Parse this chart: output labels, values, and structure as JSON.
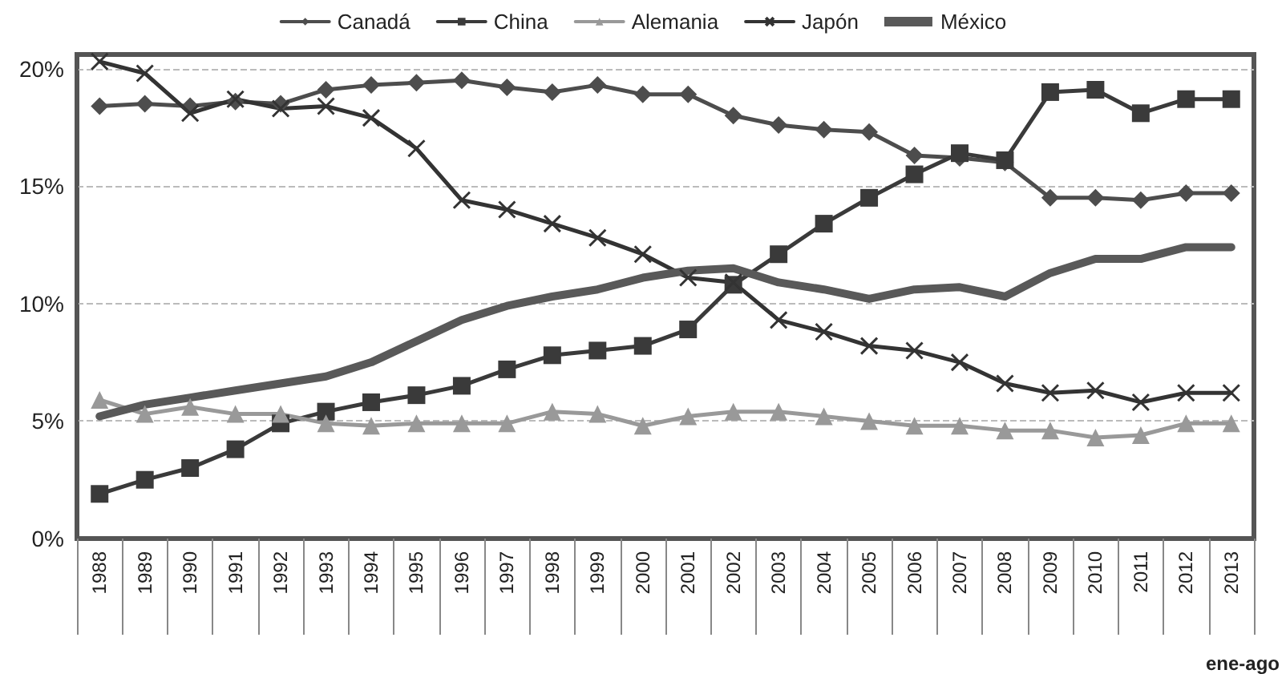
{
  "chart_data": {
    "type": "line",
    "categories": [
      "1988",
      "1989",
      "1990",
      "1991",
      "1992",
      "1993",
      "1994",
      "1995",
      "1996",
      "1997",
      "1998",
      "1999",
      "2000",
      "2001",
      "2002",
      "2003",
      "2004",
      "2005",
      "2006",
      "2007",
      "2008",
      "2009",
      "2010",
      "2011",
      "2012",
      "2013"
    ],
    "series": [
      {
        "name": "Canadá",
        "color": "#4d4d4d",
        "marker": "diamond",
        "values": [
          18.4,
          18.5,
          18.4,
          18.6,
          18.5,
          19.1,
          19.3,
          19.4,
          19.5,
          19.2,
          19.0,
          19.3,
          18.9,
          18.9,
          18.0,
          17.6,
          17.4,
          17.3,
          16.3,
          16.2,
          16.0,
          14.5,
          14.5,
          14.4,
          14.7,
          14.7
        ]
      },
      {
        "name": "China",
        "color": "#3a3a3a",
        "marker": "square",
        "values": [
          1.9,
          2.5,
          3.0,
          3.8,
          4.9,
          5.4,
          5.8,
          6.1,
          6.5,
          7.2,
          7.8,
          8.0,
          8.2,
          8.9,
          10.8,
          12.1,
          13.4,
          14.5,
          15.5,
          16.4,
          16.1,
          19.0,
          19.1,
          18.1,
          18.7,
          18.7
        ]
      },
      {
        "name": "Alemania",
        "color": "#999999",
        "marker": "triangle",
        "values": [
          5.9,
          5.3,
          5.6,
          5.3,
          5.3,
          4.9,
          4.8,
          4.9,
          4.9,
          4.9,
          5.4,
          5.3,
          4.8,
          5.2,
          5.4,
          5.4,
          5.2,
          5.0,
          4.8,
          4.8,
          4.6,
          4.6,
          4.3,
          4.4,
          4.9,
          4.9
        ]
      },
      {
        "name": "Japón",
        "color": "#333333",
        "marker": "cross",
        "values": [
          20.3,
          19.8,
          18.1,
          18.7,
          18.3,
          18.4,
          17.9,
          16.6,
          14.4,
          14.0,
          13.4,
          12.8,
          12.1,
          11.1,
          10.9,
          9.3,
          8.8,
          8.2,
          8.0,
          7.5,
          6.6,
          6.2,
          6.3,
          5.8,
          6.2,
          6.2
        ]
      },
      {
        "name": "México",
        "color": "#595959",
        "marker": "none",
        "values": [
          5.2,
          5.7,
          6.0,
          6.3,
          6.6,
          6.9,
          7.5,
          8.4,
          9.3,
          9.9,
          10.3,
          10.6,
          11.1,
          11.4,
          11.5,
          10.9,
          10.6,
          10.2,
          10.6,
          10.7,
          10.3,
          11.3,
          11.9,
          11.9,
          12.4,
          12.4
        ]
      }
    ],
    "ylim": [
      0,
      20.6
    ],
    "yticks": [
      {
        "value": 0,
        "label": "0%"
      },
      {
        "value": 5,
        "label": "5%"
      },
      {
        "value": 10,
        "label": "10%"
      },
      {
        "value": 15,
        "label": "15%"
      },
      {
        "value": 20,
        "label": "20%"
      }
    ],
    "grid": "y",
    "legend": "top",
    "line_style": "solid",
    "annotations": [
      "ene-ago"
    ]
  }
}
